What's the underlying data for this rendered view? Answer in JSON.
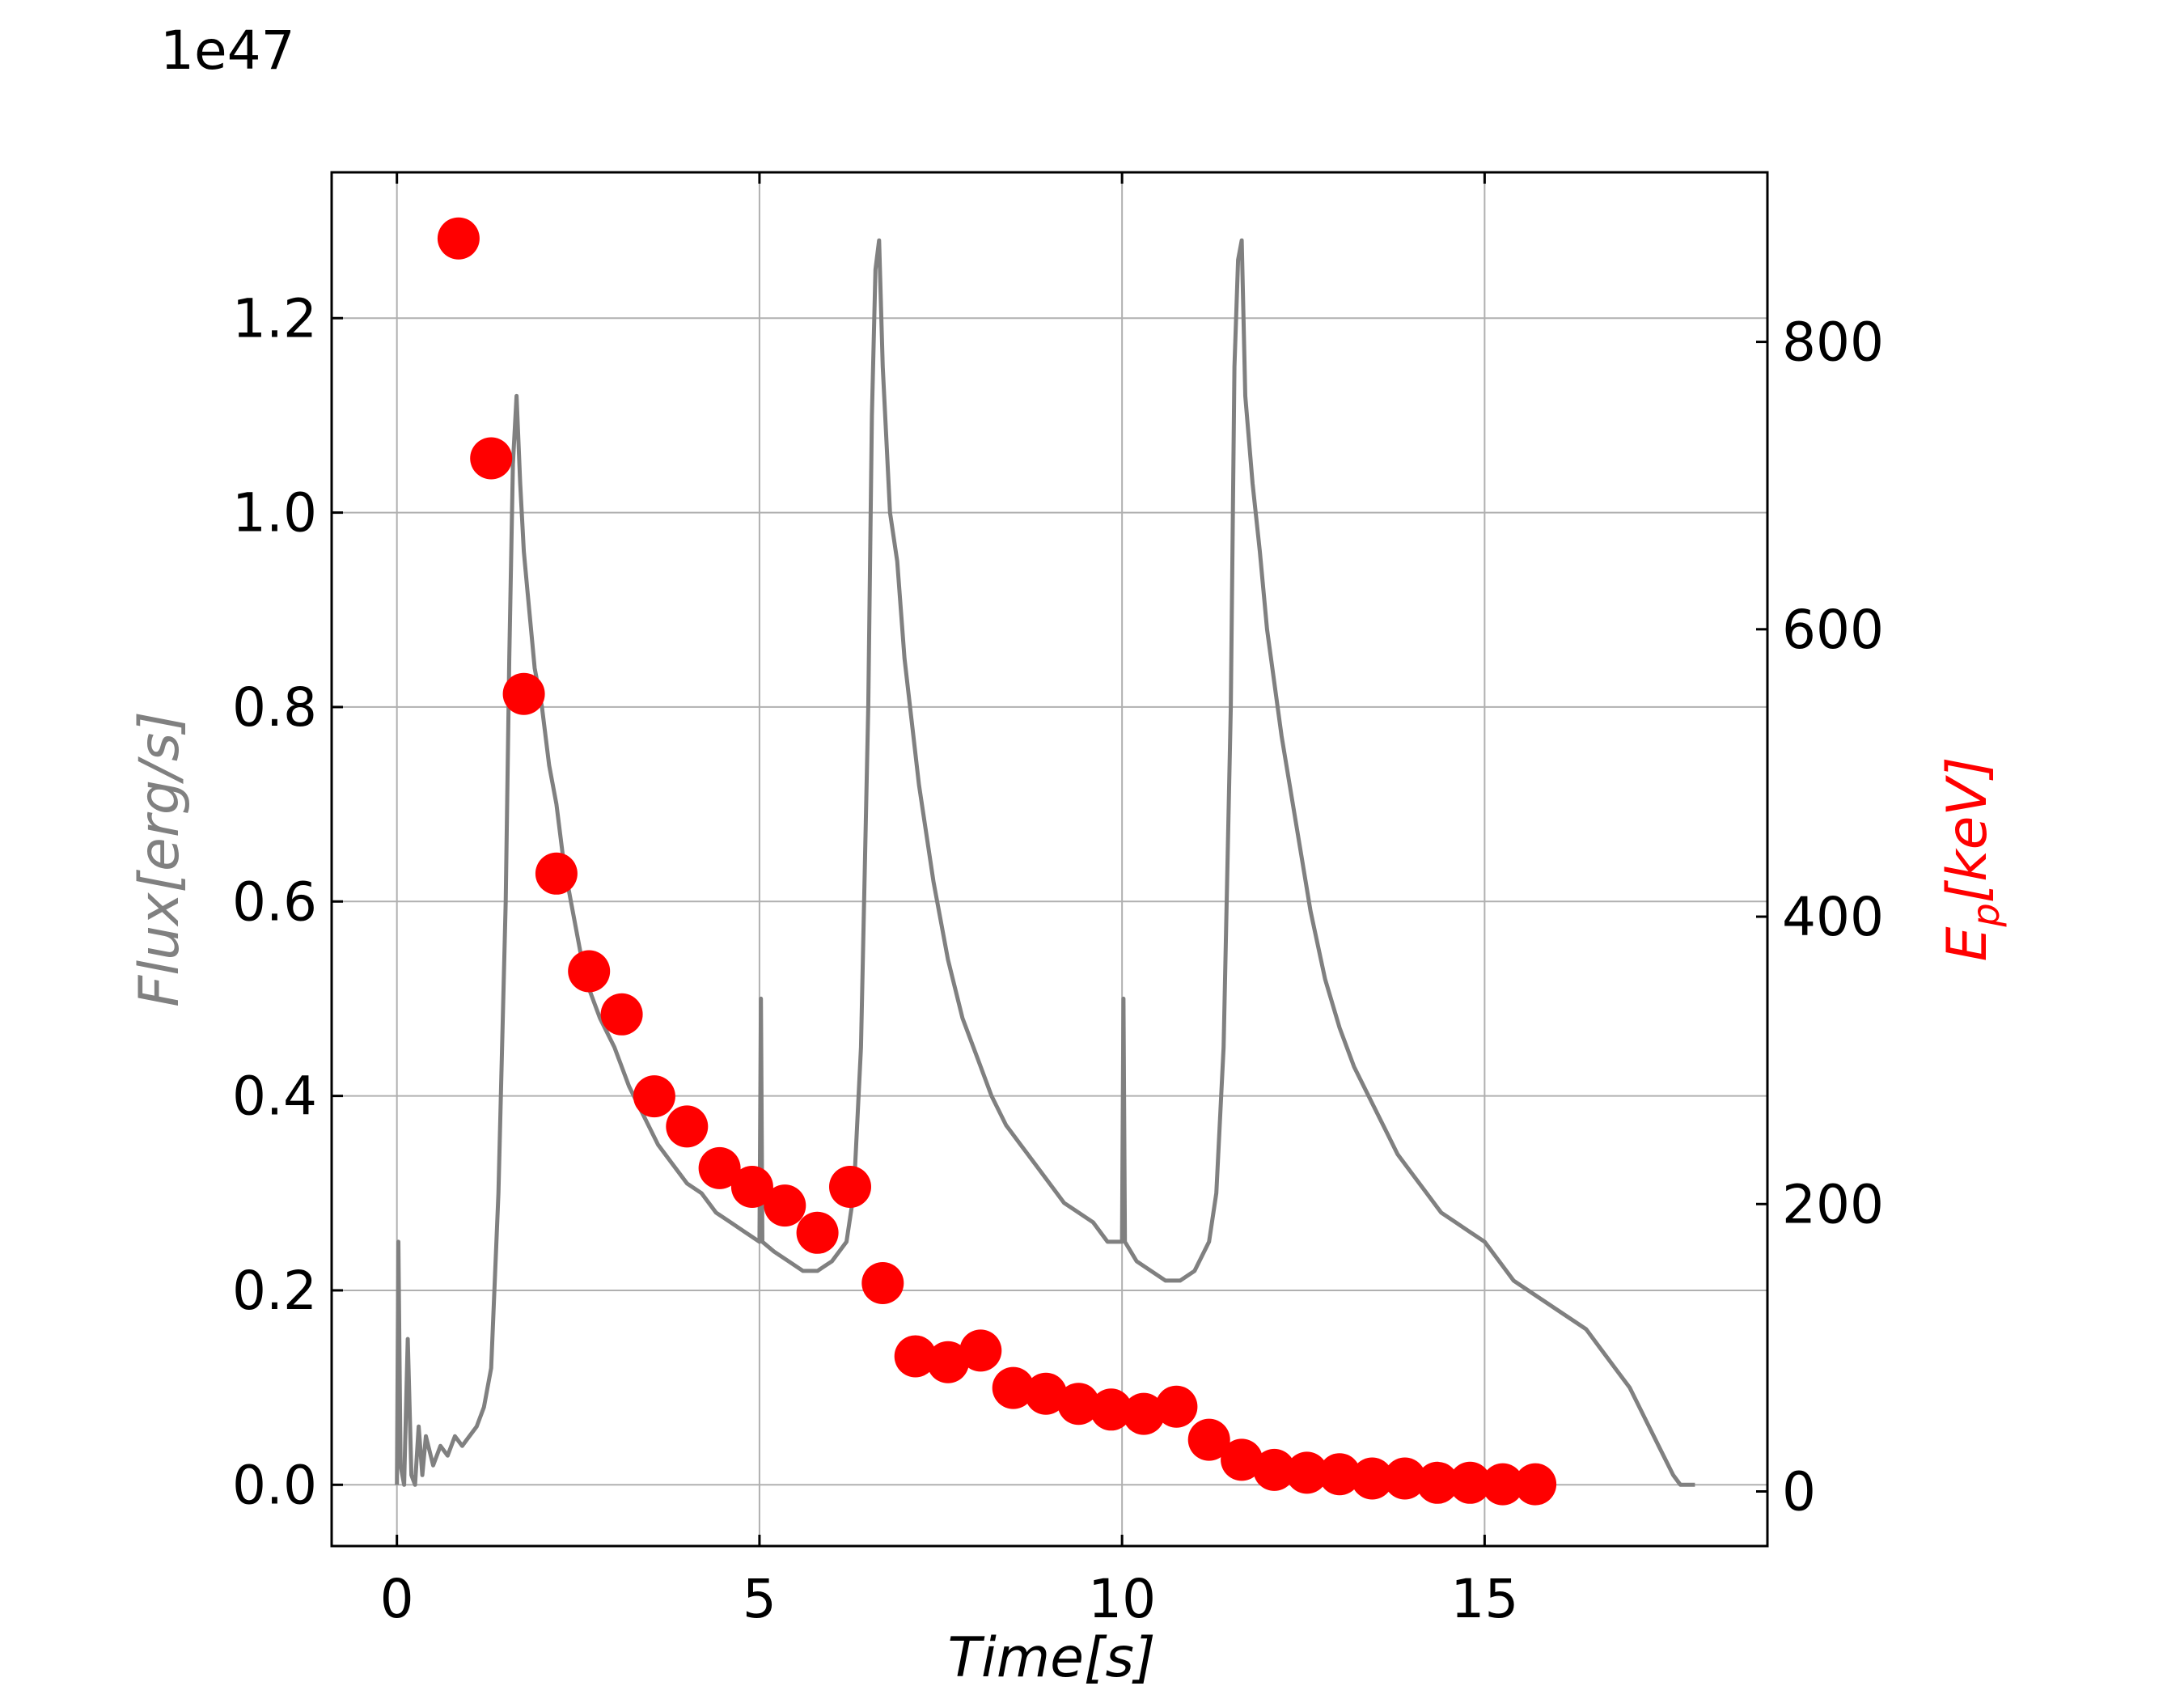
{
  "chart_data": {
    "type": "line+scatter",
    "offset_text": "1e47",
    "xlabel": "Time[s]",
    "ylabel_left": "Flux[erg/s]",
    "ylabel_right": "E_p[keV]",
    "ylabel_right_main": "E",
    "ylabel_right_sub": "p",
    "ylabel_right_units": "[keV]",
    "xlim": [
      -0.9,
      18.9
    ],
    "ylim_left": [
      -0.063,
      1.35
    ],
    "ylim_right": [
      -38,
      918
    ],
    "grid": true,
    "x_ticks": [
      {
        "value": 0,
        "label": "0"
      },
      {
        "value": 5,
        "label": "5"
      },
      {
        "value": 10,
        "label": "10"
      },
      {
        "value": 15,
        "label": "15"
      }
    ],
    "y_left_ticks": [
      {
        "value": 0.0,
        "label": "0.0"
      },
      {
        "value": 0.2,
        "label": "0.2"
      },
      {
        "value": 0.4,
        "label": "0.4"
      },
      {
        "value": 0.6,
        "label": "0.6"
      },
      {
        "value": 0.8,
        "label": "0.8"
      },
      {
        "value": 1.0,
        "label": "1.0"
      },
      {
        "value": 1.2,
        "label": "1.2"
      }
    ],
    "y_right_ticks": [
      {
        "value": 0,
        "label": "0"
      },
      {
        "value": 200,
        "label": "200"
      },
      {
        "value": 400,
        "label": "400"
      },
      {
        "value": 600,
        "label": "600"
      },
      {
        "value": 800,
        "label": "800"
      }
    ],
    "colors": {
      "flux": "#808080",
      "ep": "#ff0000",
      "grid": "#b0b0b0",
      "axis": "#000000"
    },
    "series": [
      {
        "axis": "left",
        "style": "line",
        "points": [
          [
            0.0,
            0.0
          ],
          [
            0.02,
            0.25
          ],
          [
            0.05,
            0.02
          ],
          [
            0.1,
            0.0
          ],
          [
            0.15,
            0.15
          ],
          [
            0.2,
            0.01
          ],
          [
            0.25,
            0.0
          ],
          [
            0.3,
            0.06
          ],
          [
            0.35,
            0.01
          ],
          [
            0.4,
            0.05
          ],
          [
            0.5,
            0.02
          ],
          [
            0.6,
            0.04
          ],
          [
            0.7,
            0.03
          ],
          [
            0.8,
            0.05
          ],
          [
            0.9,
            0.04
          ],
          [
            1.0,
            0.05
          ],
          [
            1.1,
            0.06
          ],
          [
            1.2,
            0.08
          ],
          [
            1.3,
            0.12
          ],
          [
            1.4,
            0.3
          ],
          [
            1.5,
            0.6
          ],
          [
            1.55,
            0.85
          ],
          [
            1.6,
            1.05
          ],
          [
            1.65,
            1.12
          ],
          [
            1.7,
            1.03
          ],
          [
            1.75,
            0.96
          ],
          [
            1.8,
            0.92
          ],
          [
            1.9,
            0.84
          ],
          [
            2.0,
            0.8
          ],
          [
            2.1,
            0.74
          ],
          [
            2.2,
            0.7
          ],
          [
            2.3,
            0.64
          ],
          [
            2.4,
            0.6
          ],
          [
            2.5,
            0.56
          ],
          [
            2.6,
            0.52
          ],
          [
            2.8,
            0.48
          ],
          [
            3.0,
            0.45
          ],
          [
            3.2,
            0.41
          ],
          [
            3.4,
            0.38
          ],
          [
            3.6,
            0.35
          ],
          [
            3.8,
            0.33
          ],
          [
            4.0,
            0.31
          ],
          [
            4.2,
            0.3
          ],
          [
            4.4,
            0.28
          ],
          [
            4.6,
            0.27
          ],
          [
            4.8,
            0.26
          ],
          [
            5.0,
            0.25
          ],
          [
            5.02,
            0.5
          ],
          [
            5.04,
            0.25
          ],
          [
            5.2,
            0.24
          ],
          [
            5.4,
            0.23
          ],
          [
            5.6,
            0.22
          ],
          [
            5.8,
            0.22
          ],
          [
            6.0,
            0.23
          ],
          [
            6.2,
            0.25
          ],
          [
            6.3,
            0.3
          ],
          [
            6.4,
            0.45
          ],
          [
            6.5,
            0.8
          ],
          [
            6.55,
            1.1
          ],
          [
            6.6,
            1.25
          ],
          [
            6.65,
            1.28
          ],
          [
            6.7,
            1.15
          ],
          [
            6.8,
            1.0
          ],
          [
            6.9,
            0.95
          ],
          [
            7.0,
            0.85
          ],
          [
            7.2,
            0.72
          ],
          [
            7.4,
            0.62
          ],
          [
            7.6,
            0.54
          ],
          [
            7.8,
            0.48
          ],
          [
            8.0,
            0.44
          ],
          [
            8.2,
            0.4
          ],
          [
            8.4,
            0.37
          ],
          [
            8.6,
            0.35
          ],
          [
            8.8,
            0.33
          ],
          [
            9.0,
            0.31
          ],
          [
            9.2,
            0.29
          ],
          [
            9.4,
            0.28
          ],
          [
            9.6,
            0.27
          ],
          [
            9.8,
            0.25
          ],
          [
            10.0,
            0.25
          ],
          [
            10.02,
            0.5
          ],
          [
            10.04,
            0.25
          ],
          [
            10.2,
            0.23
          ],
          [
            10.4,
            0.22
          ],
          [
            10.6,
            0.21
          ],
          [
            10.8,
            0.21
          ],
          [
            11.0,
            0.22
          ],
          [
            11.2,
            0.25
          ],
          [
            11.3,
            0.3
          ],
          [
            11.4,
            0.45
          ],
          [
            11.5,
            0.8
          ],
          [
            11.55,
            1.15
          ],
          [
            11.6,
            1.26
          ],
          [
            11.65,
            1.28
          ],
          [
            11.7,
            1.12
          ],
          [
            11.8,
            1.03
          ],
          [
            11.9,
            0.96
          ],
          [
            12.0,
            0.88
          ],
          [
            12.2,
            0.77
          ],
          [
            12.4,
            0.68
          ],
          [
            12.6,
            0.59
          ],
          [
            12.8,
            0.52
          ],
          [
            13.0,
            0.47
          ],
          [
            13.2,
            0.43
          ],
          [
            13.4,
            0.4
          ],
          [
            13.6,
            0.37
          ],
          [
            13.8,
            0.34
          ],
          [
            14.0,
            0.32
          ],
          [
            14.2,
            0.3
          ],
          [
            14.4,
            0.28
          ],
          [
            14.6,
            0.27
          ],
          [
            14.8,
            0.26
          ],
          [
            15.0,
            0.25
          ],
          [
            15.2,
            0.23
          ],
          [
            15.4,
            0.21
          ],
          [
            15.6,
            0.2
          ],
          [
            15.8,
            0.19
          ],
          [
            16.0,
            0.18
          ],
          [
            16.2,
            0.17
          ],
          [
            16.4,
            0.16
          ],
          [
            16.6,
            0.14
          ],
          [
            16.8,
            0.12
          ],
          [
            17.0,
            0.1
          ],
          [
            17.2,
            0.07
          ],
          [
            17.4,
            0.04
          ],
          [
            17.6,
            0.01
          ],
          [
            17.7,
            0.0
          ],
          [
            17.9,
            0.0
          ]
        ]
      },
      {
        "axis": "right",
        "style": "markers",
        "points": [
          [
            0.85,
            872
          ],
          [
            1.3,
            719
          ],
          [
            1.75,
            555
          ],
          [
            2.2,
            430
          ],
          [
            2.65,
            362
          ],
          [
            3.1,
            332
          ],
          [
            3.55,
            275
          ],
          [
            4.0,
            254
          ],
          [
            4.45,
            225
          ],
          [
            4.9,
            212
          ],
          [
            5.35,
            199
          ],
          [
            5.8,
            180
          ],
          [
            6.25,
            212
          ],
          [
            6.7,
            145
          ],
          [
            7.15,
            94
          ],
          [
            7.6,
            90
          ],
          [
            8.05,
            98
          ],
          [
            8.5,
            72
          ],
          [
            8.95,
            68
          ],
          [
            9.4,
            61
          ],
          [
            9.85,
            57
          ],
          [
            10.3,
            54
          ],
          [
            10.75,
            59
          ],
          [
            11.2,
            36
          ],
          [
            11.65,
            22
          ],
          [
            12.1,
            15
          ],
          [
            12.55,
            13
          ],
          [
            13.0,
            12
          ],
          [
            13.45,
            9
          ],
          [
            13.9,
            9
          ],
          [
            14.35,
            6
          ],
          [
            14.8,
            6
          ],
          [
            15.25,
            5
          ],
          [
            15.7,
            5
          ]
        ]
      }
    ]
  }
}
